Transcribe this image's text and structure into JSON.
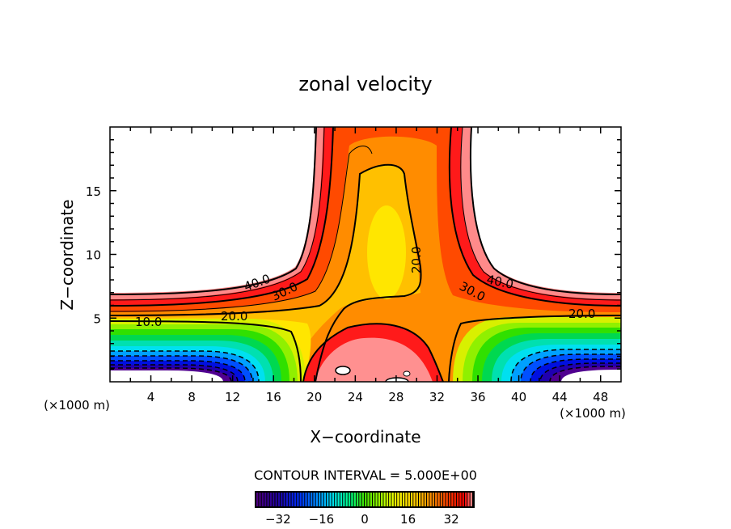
{
  "chart_data": {
    "type": "contour",
    "title": "zonal velocity",
    "xlabel": "X−coordinate",
    "ylabel": "Z−coordinate",
    "x_unit_label": "(×1000 m)",
    "y_unit_label": "(×1000 m)",
    "xlim": [
      0,
      50
    ],
    "ylim": [
      0,
      20
    ],
    "x_ticks": [
      4,
      8,
      12,
      16,
      20,
      24,
      28,
      32,
      36,
      40,
      44,
      48
    ],
    "y_ticks": [
      5,
      10,
      15
    ],
    "contour_interval_text": "CONTOUR INTERVAL = 5.000E+00",
    "contour_interval": 5,
    "negative_contours": "dashed",
    "contour_labels": [
      "40.0",
      "30.0",
      "20.0",
      "10.0",
      "20.0",
      "30.0",
      "40.0",
      "20.0"
    ],
    "colorbar": {
      "range": [
        -40,
        40
      ],
      "ticks": [
        "−32",
        "−16",
        "0",
        "16",
        "32"
      ],
      "tick_values": [
        -32,
        -16,
        0,
        16,
        32
      ]
    }
  }
}
